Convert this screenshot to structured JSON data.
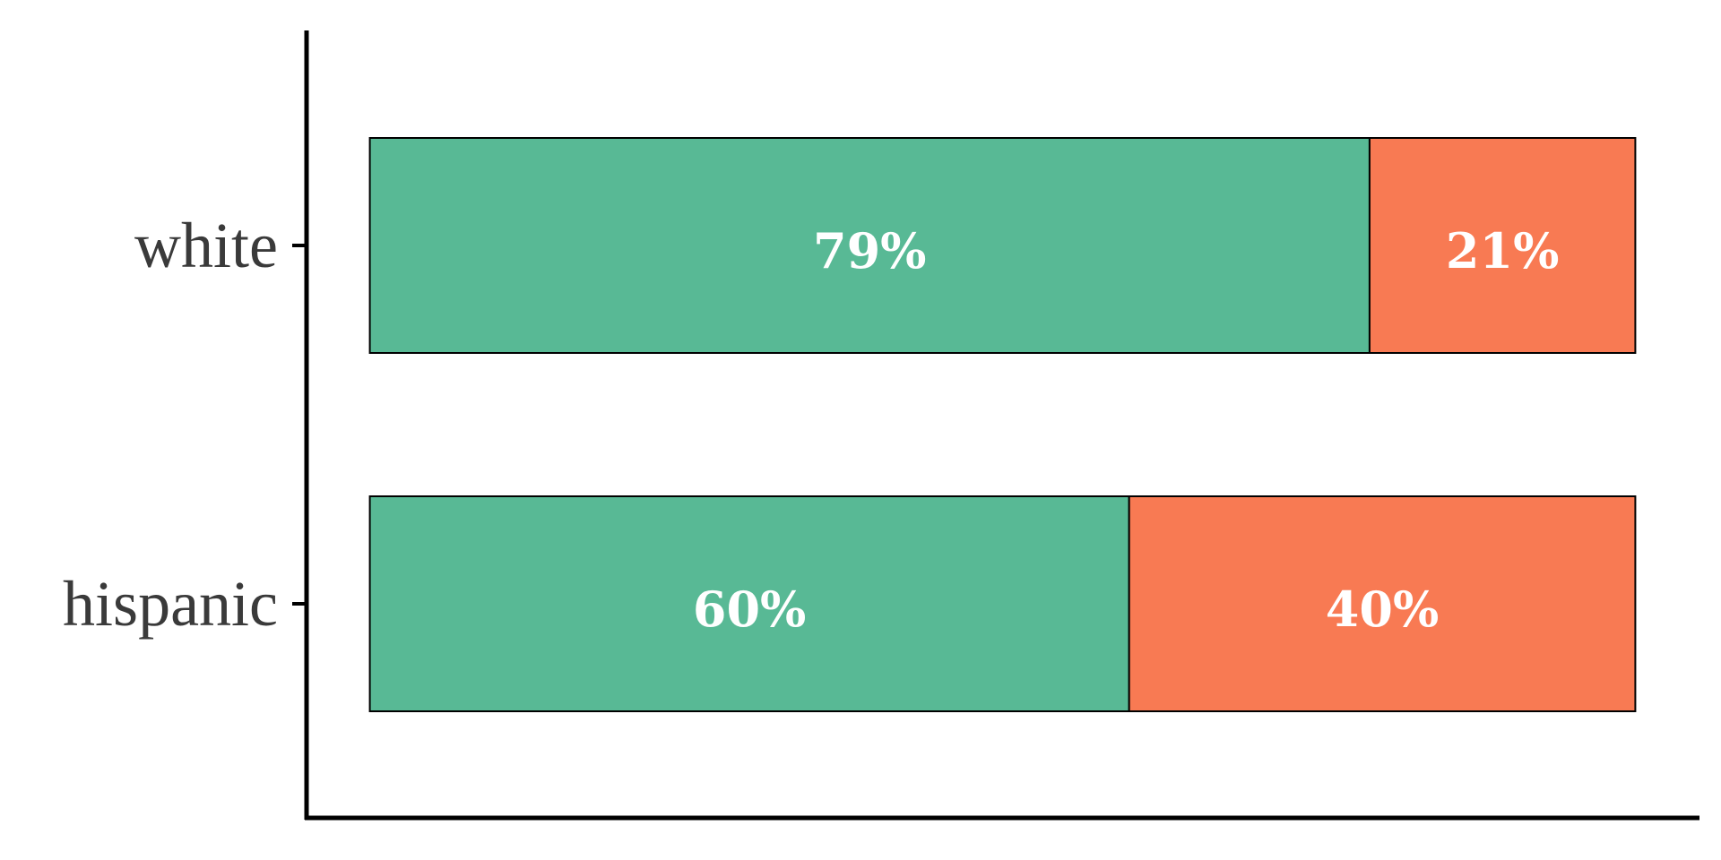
{
  "chart_data": {
    "type": "stacked_barh",
    "categories": [
      "white",
      "hispanic"
    ],
    "series": [
      {
        "color": "#58b995",
        "values": [
          79,
          60
        ],
        "value_labels": [
          "79%",
          "60%"
        ]
      },
      {
        "color": "#f87a53",
        "values": [
          21,
          40
        ],
        "value_labels": [
          "21%",
          "40%"
        ]
      }
    ],
    "xlim": [
      -5,
      105
    ]
  }
}
